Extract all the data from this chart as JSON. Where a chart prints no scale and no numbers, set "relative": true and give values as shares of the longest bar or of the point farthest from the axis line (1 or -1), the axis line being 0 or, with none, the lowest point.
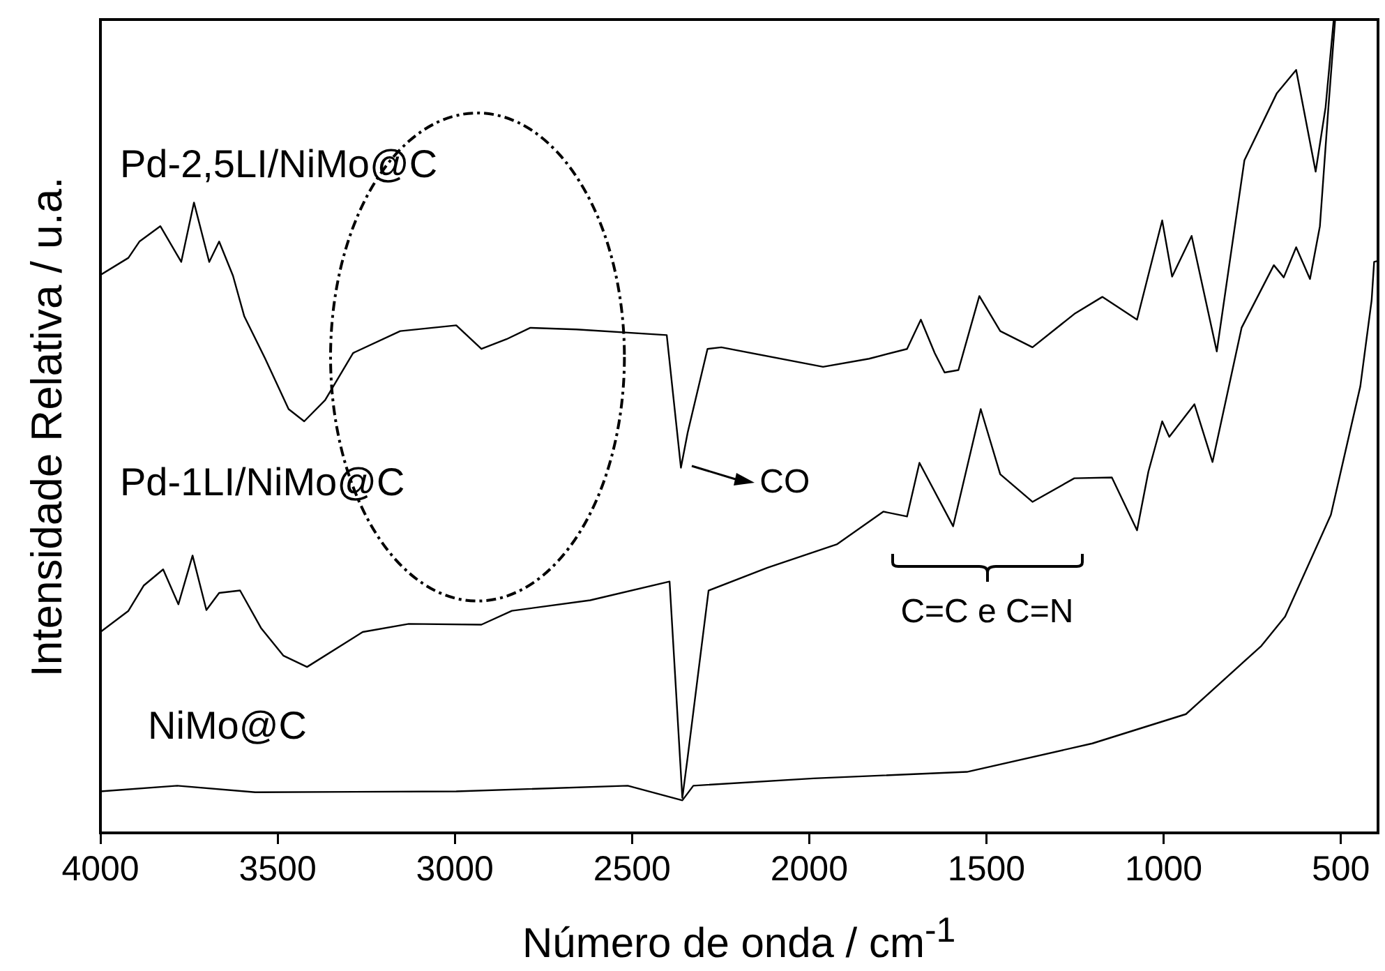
{
  "chart_data": {
    "type": "line",
    "xlabel": "Número de onda / cm$^{-1}$",
    "ylabel": "Intensidade Relativa / u.a.",
    "relative": true,
    "xlim": [
      4000,
      395
    ],
    "xticks": [
      4000,
      3500,
      3000,
      2500,
      2000,
      1500,
      1000,
      500
    ],
    "grid": false,
    "legend": false,
    "marker": "none",
    "line_style": "solid",
    "annotations": [
      "CO",
      "C=C e C=N"
    ],
    "series": [
      {
        "name": "Pd-2,5LI/NiMo@C",
        "color": "#000000",
        "x": [
          4000,
          3921,
          3890,
          3831,
          3772,
          3736,
          3693,
          3665,
          3626,
          3594,
          3535,
          3469,
          3425,
          3366,
          3287,
          3154,
          2996,
          2925,
          2854,
          2787,
          2657,
          2402,
          2362,
          2343,
          2287,
          2248,
          1961,
          1831,
          1724,
          1685,
          1646,
          1618,
          1579,
          1520,
          1461,
          1370,
          1252,
          1173,
          1134,
          1075,
          1004,
          976,
          921,
          850,
          772,
          681,
          626,
          571,
          543,
          520
        ],
        "values": [
          0.686,
          0.707,
          0.727,
          0.746,
          0.702,
          0.775,
          0.702,
          0.727,
          0.685,
          0.635,
          0.583,
          0.521,
          0.506,
          0.532,
          0.59,
          0.617,
          0.624,
          0.595,
          0.607,
          0.621,
          0.619,
          0.612,
          0.449,
          0.492,
          0.595,
          0.597,
          0.573,
          0.583,
          0.595,
          0.631,
          0.59,
          0.566,
          0.569,
          0.66,
          0.617,
          0.597,
          0.638,
          0.659,
          0.648,
          0.631,
          0.753,
          0.684,
          0.734,
          0.592,
          0.827,
          0.909,
          0.938,
          0.813,
          0.892,
          1
        ]
      },
      {
        "name": "Pd-1LI/NiMo@C",
        "color": "#000000",
        "x": [
          4000,
          3921,
          3878,
          3823,
          3780,
          3740,
          3701,
          3665,
          3606,
          3547,
          3484,
          3417,
          3260,
          3130,
          2925,
          2839,
          2618,
          2394,
          2358,
          2343,
          2284,
          2118,
          1921,
          1791,
          1724,
          1689,
          1594,
          1516,
          1461,
          1370,
          1252,
          1146,
          1075,
          1043,
          1004,
          984,
          913,
          862,
          780,
          689,
          661,
          626,
          587,
          559,
          535,
          516
        ],
        "values": [
          0.247,
          0.273,
          0.304,
          0.324,
          0.281,
          0.341,
          0.274,
          0.295,
          0.298,
          0.252,
          0.218,
          0.204,
          0.247,
          0.257,
          0.256,
          0.273,
          0.286,
          0.309,
          0.043,
          0.093,
          0.298,
          0.326,
          0.355,
          0.395,
          0.389,
          0.455,
          0.377,
          0.521,
          0.441,
          0.407,
          0.436,
          0.437,
          0.372,
          0.444,
          0.506,
          0.487,
          0.527,
          0.456,
          0.621,
          0.698,
          0.683,
          0.72,
          0.681,
          0.746,
          0.892,
          1
        ]
      },
      {
        "name": "NiMo@C",
        "color": "#000000",
        "x": [
          4000,
          3783,
          3563,
          2996,
          2512,
          2358,
          2327,
          1988,
          1555,
          1201,
          937,
          724,
          657,
          528,
          445,
          413,
          406,
          398
        ],
        "values": [
          0.051,
          0.058,
          0.05,
          0.051,
          0.058,
          0.04,
          0.058,
          0.067,
          0.075,
          0.11,
          0.146,
          0.23,
          0.266,
          0.391,
          0.549,
          0.655,
          0.702,
          0.703
        ]
      }
    ]
  }
}
